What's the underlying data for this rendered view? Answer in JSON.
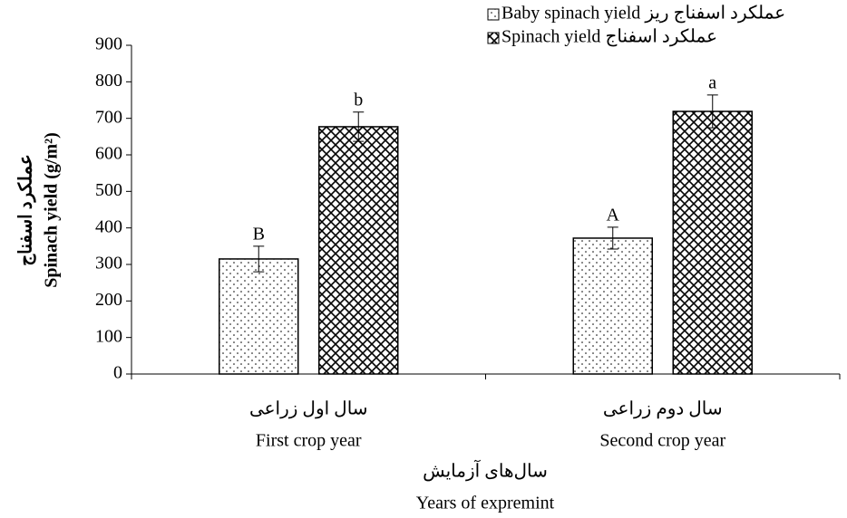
{
  "chart_data": {
    "type": "bar",
    "categories_fa": [
      "سال اول زراعی",
      "سال دوم زراعی"
    ],
    "categories": [
      "First crop year",
      "Second crop year"
    ],
    "series": [
      {
        "name": "Baby spinach yield عملکرد اسفناج ریز",
        "color": "#000000",
        "pattern": "dots",
        "values": [
          315,
          372
        ],
        "errors": [
          35,
          30
        ],
        "annotations": [
          "B",
          "A"
        ]
      },
      {
        "name": "Spinach yield عملکرد اسفناج",
        "color": "#000000",
        "pattern": "crosshatch",
        "values": [
          677,
          719
        ],
        "errors": [
          40,
          45
        ],
        "annotations": [
          "b",
          "a"
        ]
      }
    ],
    "y_label_fa": "عملکرد اسفناج",
    "y_label": "Spinach yield (g/m²)",
    "x_label_fa": "سال‌های آزمایش",
    "x_label": "Years of expremint",
    "ylim": [
      0,
      900
    ],
    "yticks": [
      0,
      100,
      200,
      300,
      400,
      500,
      600,
      700,
      800,
      900
    ],
    "legend": "top-right"
  }
}
